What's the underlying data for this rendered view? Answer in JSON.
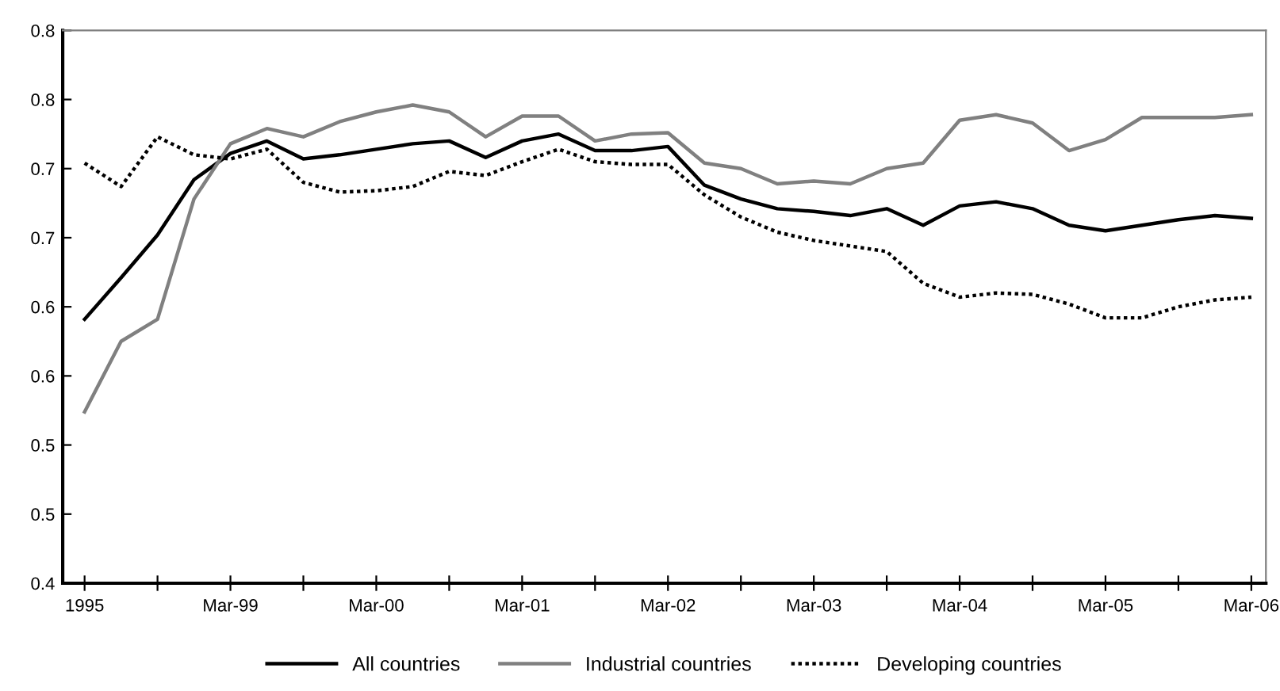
{
  "chart_data": {
    "type": "line",
    "categories": [
      "1995",
      null,
      null,
      null,
      "Mar-99",
      null,
      null,
      null,
      "Mar-00",
      null,
      null,
      null,
      "Mar-01",
      null,
      null,
      null,
      "Mar-02",
      null,
      null,
      null,
      "Mar-03",
      null,
      null,
      null,
      "Mar-04",
      null,
      null,
      null,
      "Mar-05",
      null,
      null,
      null,
      "Mar-06"
    ],
    "series": [
      {
        "name": "All countries",
        "color": "#000000",
        "line_style": "solid",
        "values": [
          0.591,
          0.621,
          0.652,
          0.692,
          0.711,
          0.72,
          0.707,
          0.71,
          0.714,
          0.718,
          0.72,
          0.708,
          0.72,
          0.725,
          0.713,
          0.713,
          0.716,
          0.688,
          0.678,
          0.671,
          0.669,
          0.666,
          0.671,
          0.659,
          0.673,
          0.676,
          0.671,
          0.659,
          0.655,
          0.659,
          0.663,
          0.666,
          0.664
        ]
      },
      {
        "name": "Industrial countries",
        "color": "#808080",
        "line_style": "solid",
        "values": [
          0.524,
          0.575,
          0.591,
          0.678,
          0.718,
          0.729,
          0.723,
          0.734,
          0.741,
          0.746,
          0.741,
          0.723,
          0.738,
          0.738,
          0.72,
          0.725,
          0.726,
          0.704,
          0.7,
          0.689,
          0.691,
          0.689,
          0.7,
          0.704,
          0.735,
          0.739,
          0.733,
          0.713,
          0.721,
          0.737,
          0.737,
          0.737,
          0.739
        ]
      },
      {
        "name": "Developing countries",
        "color": "#000000",
        "line_style": "dotted",
        "values": [
          0.704,
          0.687,
          0.723,
          0.71,
          0.707,
          0.714,
          0.69,
          0.683,
          0.684,
          0.687,
          0.698,
          0.695,
          0.705,
          0.714,
          0.705,
          0.703,
          0.703,
          0.681,
          0.665,
          0.654,
          0.648,
          0.644,
          0.64,
          0.617,
          0.607,
          0.61,
          0.609,
          0.602,
          0.592,
          0.592,
          0.6,
          0.605,
          0.607
        ]
      }
    ],
    "ylim": [
      0.4,
      0.8
    ],
    "yticks": [
      {
        "value": 0.4,
        "label": "0.4"
      },
      {
        "value": 0.45,
        "label": "0.5"
      },
      {
        "value": 0.5,
        "label": "0.5"
      },
      {
        "value": 0.55,
        "label": "0.6"
      },
      {
        "value": 0.6,
        "label": "0.6"
      },
      {
        "value": 0.65,
        "label": "0.7"
      },
      {
        "value": 0.7,
        "label": "0.7"
      },
      {
        "value": 0.75,
        "label": "0.8"
      },
      {
        "value": 0.8,
        "label": "0.8"
      }
    ],
    "grid": false,
    "legend": "bottom",
    "marker": "none"
  }
}
